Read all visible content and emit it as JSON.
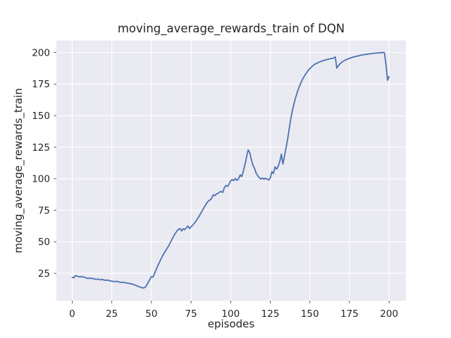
{
  "chart_data": {
    "type": "line",
    "title": "moving_average_rewards_train of DQN",
    "xlabel": "episodes",
    "ylabel": "moving_average_rewards_train",
    "x_ticks": [
      0,
      25,
      50,
      75,
      100,
      125,
      150,
      175,
      200
    ],
    "y_ticks": [
      25,
      50,
      75,
      100,
      125,
      150,
      175,
      200
    ],
    "xlim": [
      -10.0,
      210.6
    ],
    "ylim": [
      3.2,
      209.5
    ],
    "grid": true,
    "series": [
      {
        "name": "moving_average_rewards_train",
        "color": "#4C72B0",
        "x": [
          0,
          1,
          2,
          3,
          4,
          5,
          6,
          7,
          8,
          9,
          10,
          11,
          12,
          13,
          14,
          15,
          16,
          17,
          18,
          19,
          20,
          21,
          22,
          23,
          24,
          25,
          26,
          27,
          28,
          29,
          30,
          31,
          32,
          33,
          34,
          35,
          36,
          37,
          38,
          39,
          40,
          41,
          42,
          43,
          44,
          45,
          46,
          47,
          48,
          49,
          50,
          51,
          52,
          53,
          54,
          55,
          56,
          57,
          58,
          59,
          60,
          61,
          62,
          63,
          64,
          65,
          66,
          67,
          68,
          69,
          70,
          71,
          72,
          73,
          74,
          75,
          76,
          77,
          78,
          79,
          80,
          81,
          82,
          83,
          84,
          85,
          86,
          87,
          88,
          89,
          90,
          91,
          92,
          93,
          94,
          95,
          96,
          97,
          98,
          99,
          100,
          101,
          102,
          103,
          104,
          105,
          106,
          107,
          108,
          109,
          110,
          111,
          112,
          113,
          114,
          115,
          116,
          117,
          118,
          119,
          120,
          121,
          122,
          123,
          124,
          125,
          126,
          127,
          128,
          129,
          130,
          131,
          132,
          133,
          134,
          135,
          136,
          137,
          138,
          139,
          140,
          141,
          142,
          143,
          144,
          145,
          146,
          147,
          148,
          149,
          150,
          151,
          152,
          153,
          154,
          155,
          156,
          157,
          158,
          159,
          160,
          161,
          162,
          163,
          164,
          165,
          166,
          167,
          168,
          169,
          170,
          171,
          172,
          173,
          174,
          175,
          176,
          177,
          178,
          179,
          180,
          181,
          182,
          183,
          184,
          185,
          186,
          187,
          188,
          189,
          190,
          191,
          192,
          193,
          194,
          195,
          196,
          197,
          198,
          199,
          200
        ],
        "y": [
          21.8,
          21.5,
          23.2,
          22.8,
          22.4,
          22.1,
          22.5,
          22.1,
          21.7,
          21.3,
          20.9,
          21.3,
          20.8,
          21.1,
          20.5,
          20.2,
          20.5,
          20.1,
          19.8,
          20.2,
          19.7,
          19.4,
          19.7,
          19.3,
          19.0,
          18.8,
          18.6,
          18.4,
          18.7,
          18.3,
          18.0,
          17.8,
          17.9,
          17.6,
          17.4,
          17.2,
          17.0,
          16.7,
          16.4,
          16.0,
          15.5,
          15.0,
          14.5,
          14.0,
          13.6,
          13.4,
          13.9,
          15.6,
          18.0,
          20.3,
          22.4,
          22.0,
          25.0,
          28.0,
          31.0,
          33.6,
          36.3,
          38.9,
          41.0,
          43.0,
          45.0,
          47.1,
          49.5,
          52.0,
          54.4,
          56.5,
          58.4,
          59.9,
          60.5,
          58.6,
          60.4,
          59.6,
          61.1,
          62.5,
          60.4,
          61.9,
          63.1,
          64.6,
          66.2,
          68.1,
          70.0,
          72.3,
          74.5,
          76.6,
          78.9,
          80.8,
          82.4,
          83.1,
          84.5,
          87.2,
          86.6,
          87.9,
          88.4,
          89.4,
          89.9,
          89.1,
          92.8,
          94.6,
          93.9,
          95.8,
          98.3,
          99.4,
          98.5,
          100.2,
          98.7,
          99.9,
          103.0,
          101.6,
          106.1,
          111.0,
          117.0,
          122.8,
          120.9,
          115.4,
          111.0,
          108.4,
          104.6,
          102.5,
          101.0,
          99.7,
          100.6,
          99.6,
          100.4,
          99.8,
          98.9,
          100.6,
          105.6,
          104.1,
          109.4,
          107.6,
          109.9,
          113.6,
          119.4,
          111.6,
          118.0,
          124.8,
          131.7,
          140.0,
          147.8,
          154.3,
          159.6,
          164.2,
          168.4,
          172.0,
          175.1,
          177.9,
          180.2,
          182.3,
          184.2,
          185.9,
          187.3,
          188.6,
          189.7,
          190.6,
          191.3,
          191.9,
          192.5,
          193.0,
          193.4,
          193.8,
          194.2,
          194.5,
          194.8,
          195.1,
          195.4,
          195.7,
          196.5,
          187.7,
          189.6,
          191.1,
          192.2,
          193.1,
          193.8,
          194.4,
          195.0,
          195.4,
          195.9,
          196.3,
          196.6,
          196.9,
          197.2,
          197.5,
          197.8,
          198.0,
          198.3,
          198.5,
          198.7,
          198.9,
          199.0,
          199.2,
          199.3,
          199.5,
          199.6,
          199.7,
          199.8,
          199.9,
          200.0,
          200.0,
          191.0,
          178.0,
          181.0
        ]
      }
    ]
  },
  "style": {
    "figure_bg": "#FFFFFF",
    "axes_bg": "#EAEAF2",
    "grid_color": "#FFFFFF",
    "text_color": "#262626",
    "line_color": "#4C72B0"
  }
}
